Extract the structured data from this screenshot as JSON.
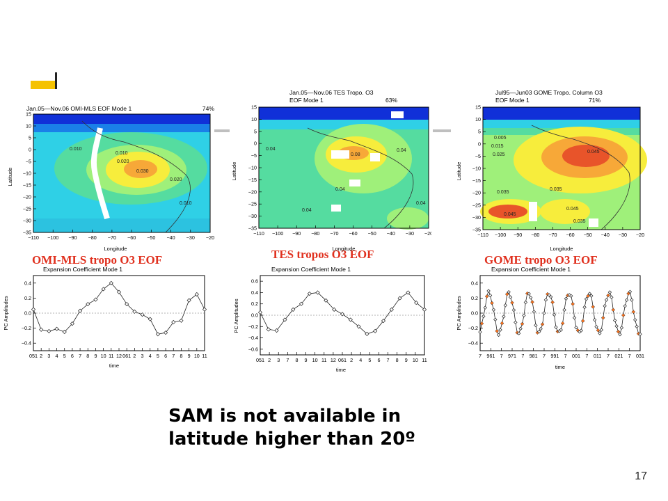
{
  "slide": {
    "message_line1": "SAM is not available in",
    "message_line2": "latitude higher than 20º",
    "page_number": "17",
    "accent_color": "#f5c200",
    "caption_color": "#e0301e"
  },
  "panels": [
    {
      "id": "omi",
      "caption": "OMI-MLS tropo O3 EOF",
      "map": {
        "title_left": "Jan.05—Nov.06 OMI-MLS EOF Mode 1",
        "title_right": "74%",
        "ylabel": "Latitude",
        "xlabel": "Longitude",
        "xticks": [
          "−110",
          "−100",
          "−90",
          "−80",
          "−70",
          "−60",
          "−50",
          "−40",
          "−30",
          "−20"
        ],
        "yticks": [
          "15",
          "10",
          "5",
          "0",
          "−5",
          "−10",
          "−15",
          "−20",
          "−25",
          "−30",
          "−35"
        ],
        "contour_labels": [
          "0.010",
          "0.010",
          "0.020",
          "0.030",
          "0.020",
          "0.010"
        ]
      },
      "ts": {
        "title": "Expansion Coefficient Mode 1",
        "ylabel": "PC Amplitudes",
        "xlabel": "time",
        "yticks": [
          "0.4",
          "0.2",
          "0.0",
          "−0.2",
          "−0.4"
        ],
        "xticks": [
          "051",
          "2",
          "3",
          "4",
          "5",
          "6",
          "7",
          "8",
          "9",
          "10",
          "11",
          "12",
          "061",
          "2",
          "3",
          "4",
          "5",
          "6",
          "7",
          "8",
          "9",
          "10",
          "11"
        ]
      }
    },
    {
      "id": "tes",
      "caption": "TES tropos O3 EOF",
      "map": {
        "title_line1": "Jan.05—Nov.06 TES Tropo. O3",
        "title_left": "EOF Mode 1",
        "title_right": "63%",
        "ylabel": "Latitude",
        "xlabel": "Longitude",
        "xticks": [
          "−110",
          "−100",
          "−90",
          "−80",
          "−70",
          "−60",
          "−50",
          "−40",
          "−30",
          "−20"
        ],
        "yticks": [
          "15",
          "10",
          "5",
          "0",
          "−5",
          "−10",
          "−15",
          "−20",
          "−25",
          "−30",
          "−35"
        ],
        "contour_labels": [
          "0.04",
          "0.08",
          "0.04",
          "0.04",
          "0.04",
          "0.04"
        ]
      },
      "ts": {
        "title": "Expansion Coefficient Mode 1",
        "ylabel": "PC Amplitudes",
        "xlabel": "time",
        "yticks": [
          "0.6",
          "0.4",
          "0.2",
          "0.0",
          "−0.2",
          "−0.4",
          "−0.6"
        ],
        "xticks": [
          "051",
          "2",
          "3",
          "7",
          "8",
          "9",
          "10",
          "11",
          "12",
          "061",
          "2",
          "4",
          "5",
          "6",
          "7",
          "8",
          "9",
          "10",
          "11"
        ]
      }
    },
    {
      "id": "gome",
      "caption": "GOME tropo O3 EOF",
      "map": {
        "title_line1": "Jul95—Jun03 GOME Tropo. Column O3",
        "title_left": "EOF Mode 1",
        "title_right": "71%",
        "ylabel": "Latitude",
        "xlabel": "Longitude",
        "xticks": [
          "−110",
          "−100",
          "−90",
          "−80",
          "−70",
          "−60",
          "−50",
          "−40",
          "−30",
          "−20"
        ],
        "yticks": [
          "15",
          "10",
          "5",
          "0",
          "−5",
          "−10",
          "−15",
          "−20",
          "−25",
          "−30",
          "−35"
        ],
        "contour_labels": [
          "0.005",
          "0.015",
          "0.025",
          "0.045",
          "0.035",
          "0.035",
          "0.045",
          "0.045",
          "0.035"
        ]
      },
      "ts": {
        "title": "Expansion Coefficient Mode 1",
        "ylabel": "PC Amplitudes",
        "xlabel": "time",
        "yticks": [
          "0.4",
          "0.2",
          "0.0",
          "−0.2",
          "−0.4"
        ],
        "xticks": [
          "7",
          "961",
          "7",
          "971",
          "7",
          "981",
          "7",
          "991",
          "7",
          "001",
          "7",
          "011",
          "7",
          "021",
          "7",
          "031"
        ]
      }
    }
  ],
  "chart_data": [
    {
      "type": "line",
      "title": "Expansion Coefficient Mode 1",
      "ylabel": "PC Amplitudes",
      "xlabel": "time",
      "ylim": [
        -0.5,
        0.5
      ],
      "values": [
        0.05,
        -0.22,
        -0.24,
        -0.21,
        -0.25,
        -0.14,
        0.03,
        0.12,
        0.18,
        0.32,
        0.4,
        0.28,
        0.12,
        0.02,
        -0.02,
        -0.08,
        -0.28,
        -0.26,
        -0.12,
        -0.1,
        0.17,
        0.25,
        0.05
      ]
    },
    {
      "type": "line",
      "title": "Expansion Coefficient Mode 1",
      "ylabel": "PC Amplitudes",
      "xlabel": "time",
      "ylim": [
        -0.7,
        0.7
      ],
      "values": [
        0.05,
        -0.25,
        -0.27,
        -0.08,
        0.1,
        0.2,
        0.38,
        0.4,
        0.26,
        0.1,
        0.02,
        -0.08,
        -0.2,
        -0.33,
        -0.28,
        -0.1,
        0.1,
        0.3,
        0.4,
        0.22,
        0.1
      ]
    },
    {
      "type": "line",
      "title": "Expansion Coefficient Mode 1",
      "ylabel": "PC Amplitudes",
      "xlabel": "time",
      "ylim": [
        -0.5,
        0.5
      ],
      "periods": 8,
      "amplitude": 0.27,
      "highlight_color": "#f07020"
    }
  ]
}
